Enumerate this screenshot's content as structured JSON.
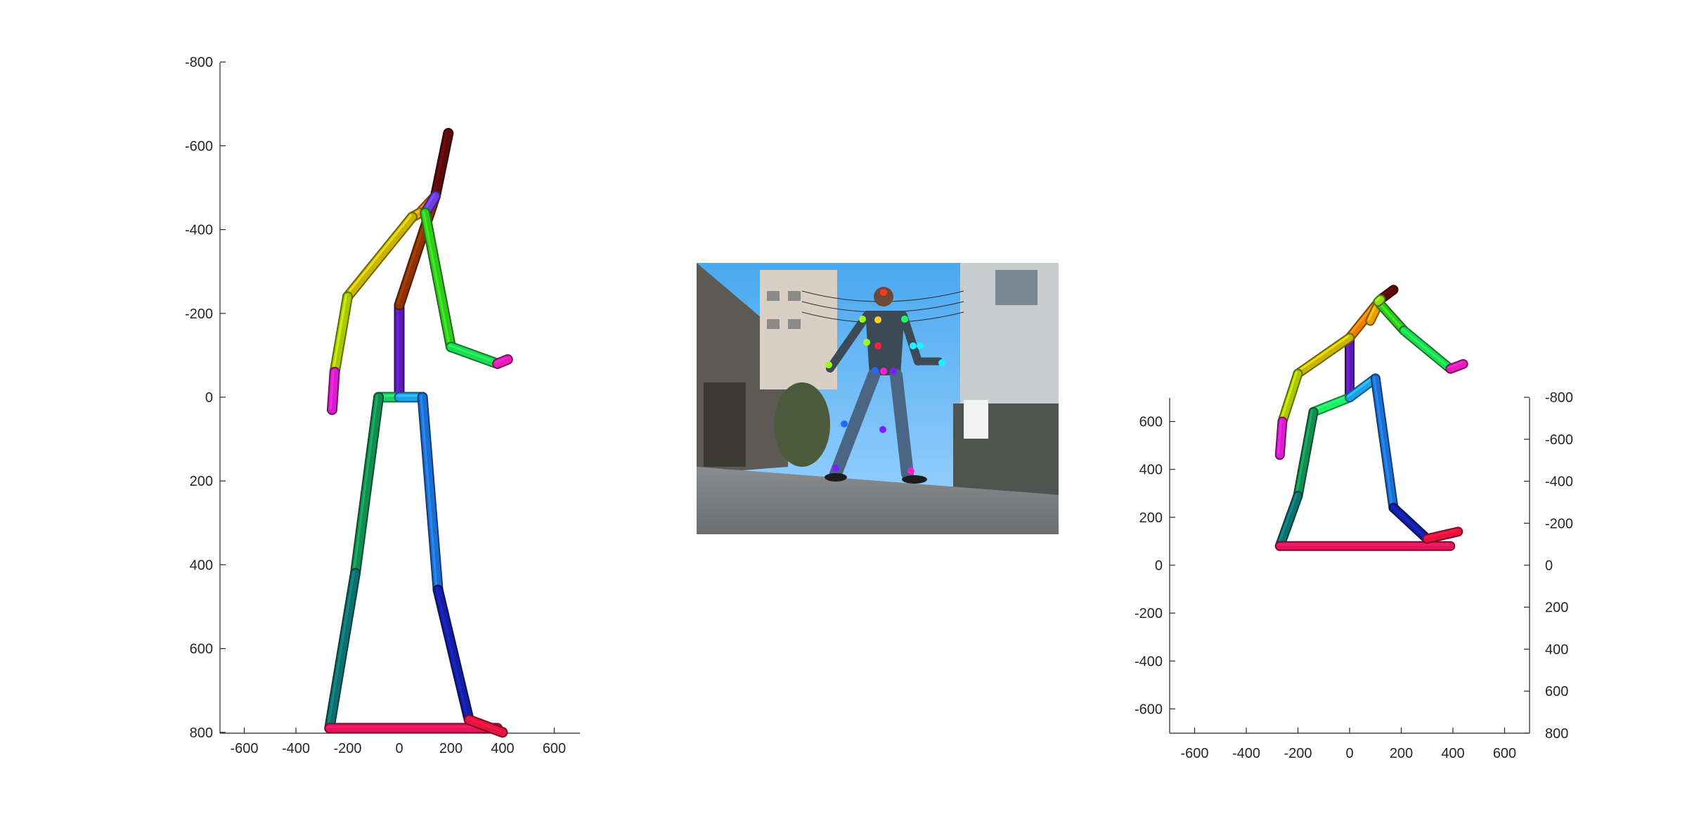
{
  "figure": {
    "panels": 3,
    "background": "#ffffff",
    "axis_color": "#262626"
  },
  "photo": {
    "description": "",
    "keypoint_colors": [
      "#ff3b1f",
      "#ffd21f",
      "#9bff1f",
      "#1fff6a",
      "#1ff0ff",
      "#1f6aff",
      "#7a1fff",
      "#ff1fd2",
      "#ff1f3b"
    ]
  },
  "chart_data": [
    {
      "type": "scatter",
      "title": "",
      "xlabel": "",
      "ylabel": "",
      "xlim": [
        -700,
        700
      ],
      "ylim": [
        -800,
        800
      ],
      "y_reversed": true,
      "xticks": [
        -600,
        -400,
        -200,
        0,
        200,
        400,
        600
      ],
      "yticks": [
        -800,
        -600,
        -400,
        -200,
        0,
        200,
        400,
        600,
        800
      ],
      "xtick_labels": [
        "-600",
        "-400",
        "-200",
        "0",
        "200",
        "400",
        "600"
      ],
      "ytick_labels": [
        "-800",
        "-600",
        "-400",
        "-200",
        "0",
        "200",
        "400",
        "600",
        "800"
      ],
      "grid": false,
      "joints": {
        "head_top": [
          190,
          -630
        ],
        "head": [
          140,
          -480
        ],
        "neck": [
          80,
          -440
        ],
        "spine": [
          0,
          -220
        ],
        "pelvis": [
          0,
          0
        ],
        "r_shoulder": [
          50,
          -430
        ],
        "r_elbow": [
          -200,
          -240
        ],
        "r_wrist": [
          -250,
          -60
        ],
        "r_hand": [
          -260,
          30
        ],
        "l_shoulder": [
          100,
          -440
        ],
        "l_elbow": [
          200,
          -120
        ],
        "l_wrist": [
          380,
          -80
        ],
        "l_hand": [
          420,
          -90
        ],
        "r_hip": [
          -80,
          0
        ],
        "r_knee": [
          -170,
          420
        ],
        "r_ankle": [
          -270,
          790
        ],
        "r_toe": [
          380,
          790
        ],
        "l_hip": [
          90,
          0
        ],
        "l_knee": [
          150,
          460
        ],
        "l_ankle": [
          270,
          770
        ],
        "l_toe": [
          400,
          800
        ]
      },
      "bones": [
        {
          "from": "pelvis",
          "to": "spine",
          "color": "#5a1ab4"
        },
        {
          "from": "spine",
          "to": "head",
          "color": "#8c3200"
        },
        {
          "from": "head",
          "to": "head_top",
          "color": "#5a0a0a"
        },
        {
          "from": "head",
          "to": "neck",
          "color": "#e87f00"
        },
        {
          "from": "neck",
          "to": "r_shoulder",
          "color": "#e6a000"
        },
        {
          "from": "r_shoulder",
          "to": "r_elbow",
          "color": "#c8b400"
        },
        {
          "from": "r_elbow",
          "to": "r_wrist",
          "color": "#a8c800"
        },
        {
          "from": "r_wrist",
          "to": "r_hand",
          "color": "#d81ec8"
        },
        {
          "from": "head",
          "to": "l_shoulder",
          "color": "#6e3ce6"
        },
        {
          "from": "l_shoulder",
          "to": "l_elbow",
          "color": "#32c81e"
        },
        {
          "from": "l_elbow",
          "to": "l_wrist",
          "color": "#1edc50"
        },
        {
          "from": "l_wrist",
          "to": "l_hand",
          "color": "#e61eb4"
        },
        {
          "from": "pelvis",
          "to": "r_hip",
          "color": "#1ed264"
        },
        {
          "from": "r_hip",
          "to": "r_knee",
          "color": "#148c50"
        },
        {
          "from": "r_knee",
          "to": "r_ankle",
          "color": "#0f6e6e"
        },
        {
          "from": "r_ankle",
          "to": "r_toe",
          "color": "#e6145a"
        },
        {
          "from": "pelvis",
          "to": "l_hip",
          "color": "#1ea0e6"
        },
        {
          "from": "l_hip",
          "to": "l_knee",
          "color": "#1e6ed2"
        },
        {
          "from": "l_knee",
          "to": "l_ankle",
          "color": "#141ea0"
        },
        {
          "from": "l_ankle",
          "to": "l_toe",
          "color": "#e6143c"
        }
      ]
    },
    {
      "type": "scatter",
      "title": "",
      "xlabel": "",
      "ylabel": "",
      "xlim": [
        -700,
        700
      ],
      "ylim": [
        -700,
        700
      ],
      "y2lim": [
        -800,
        800
      ],
      "y2_reversed": true,
      "xticks": [
        -600,
        -400,
        -200,
        0,
        200,
        400,
        600
      ],
      "yticks": [
        -600,
        -400,
        -200,
        0,
        200,
        400,
        600
      ],
      "y2ticks": [
        -800,
        -600,
        -400,
        -200,
        0,
        200,
        400,
        600,
        800
      ],
      "xtick_labels": [
        "-600",
        "-400",
        "-200",
        "0",
        "200",
        "400",
        "600"
      ],
      "ytick_labels": [
        "-600",
        "-400",
        "-200",
        "0",
        "200",
        "400",
        "600"
      ],
      "y2tick_labels": [
        "-800",
        "-600",
        "-400",
        "-200",
        "0",
        "200",
        "400",
        "600",
        "800"
      ],
      "grid": false,
      "joints": {
        "head_top": [
          170,
          1150
        ],
        "head": [
          120,
          1110
        ],
        "neck": [
          80,
          1020
        ],
        "spine": [
          0,
          950
        ],
        "pelvis": [
          0,
          700
        ],
        "r_shoulder": [
          0,
          950
        ],
        "r_elbow": [
          -200,
          800
        ],
        "r_wrist": [
          -260,
          600
        ],
        "r_hand": [
          -270,
          460
        ],
        "l_shoulder": [
          110,
          1100
        ],
        "l_elbow": [
          210,
          980
        ],
        "l_wrist": [
          390,
          820
        ],
        "l_hand": [
          440,
          840
        ],
        "r_hip": [
          -140,
          640
        ],
        "r_knee": [
          -200,
          290
        ],
        "r_ankle": [
          -270,
          80
        ],
        "r_toe": [
          390,
          80
        ],
        "l_hip": [
          100,
          780
        ],
        "l_knee": [
          170,
          240
        ],
        "l_ankle": [
          300,
          110
        ],
        "l_toe": [
          420,
          140
        ]
      },
      "bones": [
        {
          "from": "pelvis",
          "to": "spine",
          "color": "#5a1ab4"
        },
        {
          "from": "spine",
          "to": "head",
          "color": "#e87f00"
        },
        {
          "from": "head",
          "to": "head_top",
          "color": "#5a0a0a"
        },
        {
          "from": "neck",
          "to": "head",
          "color": "#e6a000"
        },
        {
          "from": "spine",
          "to": "r_elbow",
          "color": "#c8b400"
        },
        {
          "from": "r_elbow",
          "to": "r_wrist",
          "color": "#a8c800"
        },
        {
          "from": "r_wrist",
          "to": "r_hand",
          "color": "#d81ec8"
        },
        {
          "from": "l_shoulder",
          "to": "l_elbow",
          "color": "#32c81e"
        },
        {
          "from": "l_elbow",
          "to": "l_wrist",
          "color": "#1edc50"
        },
        {
          "from": "l_wrist",
          "to": "l_hand",
          "color": "#e61eb4"
        },
        {
          "from": "head",
          "to": "l_shoulder",
          "color": "#8cdc1e"
        },
        {
          "from": "pelvis",
          "to": "r_hip",
          "color": "#1ef064"
        },
        {
          "from": "r_hip",
          "to": "r_knee",
          "color": "#148c50"
        },
        {
          "from": "r_knee",
          "to": "r_ankle",
          "color": "#0f6e6e"
        },
        {
          "from": "r_ankle",
          "to": "r_toe",
          "color": "#e6145a"
        },
        {
          "from": "pelvis",
          "to": "l_hip",
          "color": "#1ea0e6"
        },
        {
          "from": "l_hip",
          "to": "l_knee",
          "color": "#1e6ed2"
        },
        {
          "from": "l_knee",
          "to": "l_ankle",
          "color": "#141ea0"
        },
        {
          "from": "l_ankle",
          "to": "l_toe",
          "color": "#e6143c"
        }
      ]
    }
  ]
}
